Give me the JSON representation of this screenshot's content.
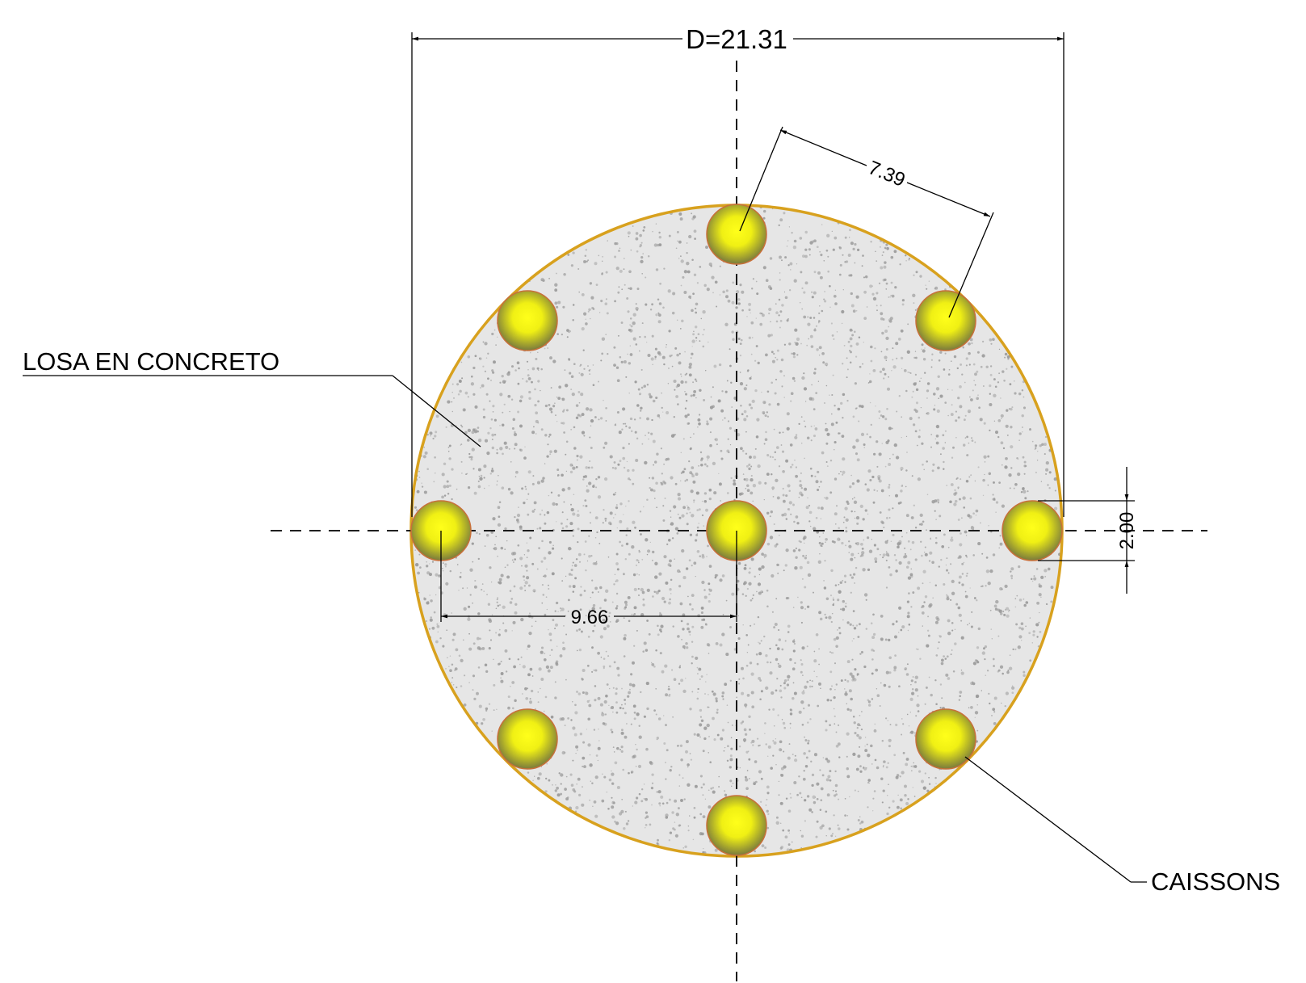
{
  "labels": {
    "slab": "LOSA EN CONCRETO",
    "caissons": "CAISSONS"
  },
  "dimensions": {
    "diameter": "D=21.31",
    "spacing": "7.39",
    "radius": "9.66",
    "caisson_diameter": "2.00"
  },
  "colors": {
    "slab_outline": "#d8a11e",
    "slab_fill": "#e6e6e6",
    "speckle": "#9a9a9a",
    "caisson_center": "#ffff1a",
    "caisson_edge": "#7a7a3c",
    "caisson_outline": "#c8703a"
  },
  "caissons": {
    "count_ring": 8,
    "center": true
  }
}
